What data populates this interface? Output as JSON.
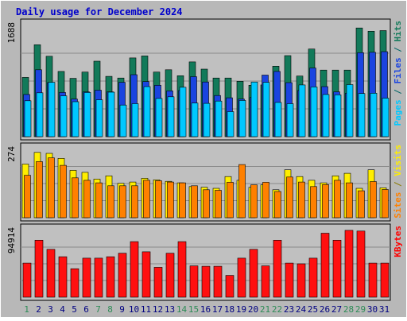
{
  "chart_data": {
    "type": "bar",
    "title": "Daily usage for December 2024",
    "categories": [
      "1",
      "2",
      "3",
      "4",
      "5",
      "6",
      "7",
      "8",
      "9",
      "10",
      "11",
      "12",
      "13",
      "14",
      "15",
      "16",
      "17",
      "18",
      "19",
      "20",
      "21",
      "22",
      "23",
      "24",
      "25",
      "26",
      "27",
      "28",
      "29",
      "30",
      "31"
    ],
    "weekend_days": [
      "1",
      "7",
      "8",
      "14",
      "15",
      "21",
      "22",
      "28",
      "29"
    ],
    "panels": [
      {
        "id": "hits",
        "max_label": "1688",
        "ymax": 1688,
        "right_labels": [
          {
            "text": "Pages",
            "color": "#00c8ff"
          },
          {
            "text": " / ",
            "color": "#006666"
          },
          {
            "text": "Files",
            "color": "#1a44e0"
          },
          {
            "text": " / ",
            "color": "#006666"
          },
          {
            "text": "Hits",
            "color": "#127a5a"
          }
        ],
        "series": [
          {
            "name": "Hits",
            "color": "#127a5a",
            "values": [
              900,
              1395,
              1220,
              990,
              885,
              980,
              1145,
              915,
              890,
              1195,
              1225,
              980,
              1015,
              925,
              1135,
              1025,
              890,
              890,
              840,
              780,
              785,
              1070,
              1230,
              920,
              1330,
              1010,
              1010,
              1010,
              1650,
              1600,
              1610
            ]
          },
          {
            "name": "Files",
            "color": "#1a44e0",
            "values": [
              640,
              1015,
              820,
              670,
              570,
              680,
              705,
              680,
              825,
              940,
              835,
              780,
              695,
              700,
              910,
              830,
              625,
              590,
              570,
              595,
              935,
              990,
              820,
              700,
              1040,
              760,
              680,
              660,
              1275,
              1280,
              1290
            ]
          },
          {
            "name": "Pages",
            "color": "#00c8ff",
            "values": [
              545,
              665,
              825,
              620,
              530,
              670,
              560,
              675,
              480,
              500,
              760,
              580,
              605,
              750,
              510,
              505,
              540,
              380,
              550,
              830,
              825,
              520,
              500,
              785,
              755,
              640,
              635,
              790,
              655,
              660,
              585
            ]
          }
        ]
      },
      {
        "id": "visits",
        "max_label": "274",
        "ymax": 274,
        "right_labels": [
          {
            "text": "Sites",
            "color": "#ff8000"
          },
          {
            "text": " / ",
            "color": "#8a7a00"
          },
          {
            "text": "Visits",
            "color": "#ffee00"
          }
        ],
        "series": [
          {
            "name": "Visits",
            "color": "#ffee00",
            "values": [
              215,
              262,
              258,
              238,
              190,
              182,
              155,
              168,
              138,
              143,
              158,
              152,
              146,
              140,
              125,
              122,
              118,
              165,
              150,
              122,
              132,
              112,
              192,
              165,
              150,
              140,
              168,
              178,
              118,
              192,
              120
            ]
          },
          {
            "name": "Sites",
            "color": "#ff8000",
            "values": [
              170,
              225,
              240,
              210,
              160,
              150,
              140,
              128,
              128,
              128,
              150,
              148,
              143,
              140,
              128,
              112,
              110,
              142,
              213,
              132,
              142,
              105,
              163,
              143,
              125,
              133,
              150,
              140,
              108,
              145,
              113
            ]
          }
        ]
      },
      {
        "id": "kbytes",
        "max_label": "94914",
        "ymax": 94914,
        "right_labels": [
          {
            "text": "KBytes",
            "color": "#ff0000"
          }
        ],
        "series": [
          {
            "name": "KBytes",
            "color": "#ff1010",
            "values": [
              48500,
              81000,
              68000,
              57500,
              40500,
              55500,
              55500,
              57500,
              62500,
              79000,
              64500,
              42500,
              62500,
              79000,
              44500,
              44000,
              44000,
              31000,
              55500,
              68000,
              44500,
              81000,
              48500,
              47500,
              55500,
              91000,
              81000,
              95000,
              94000,
              48500,
              48500
            ]
          }
        ]
      }
    ]
  }
}
